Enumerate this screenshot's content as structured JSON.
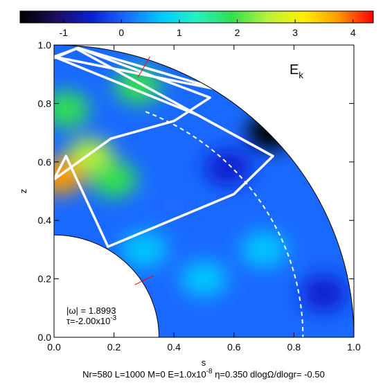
{
  "chart_data": {
    "type": "heatmap",
    "colorbar": {
      "ticks": [
        "-1",
        "0",
        "1",
        "2",
        "3",
        "4"
      ],
      "tick_values": [
        -1,
        0,
        1,
        2,
        3,
        4
      ],
      "range": [
        -1.75,
        4.35
      ],
      "colors": [
        "#000000",
        "#1b0e5a",
        "#0a1ecf",
        "#1a69ff",
        "#00c8ff",
        "#27f0c0",
        "#31e04f",
        "#b6f23a",
        "#fff000",
        "#ff9a00",
        "#ff0000"
      ]
    },
    "xlabel": "s",
    "ylabel": "z",
    "x_ticks": [
      "0.0",
      "0.2",
      "0.4",
      "0.6",
      "0.8",
      "1.0"
    ],
    "x_tick_values": [
      0.0,
      0.2,
      0.4,
      0.6,
      0.8,
      1.0
    ],
    "y_ticks": [
      "0.0",
      "0.2",
      "0.4",
      "0.6",
      "0.8",
      "1.0"
    ],
    "y_tick_values": [
      0.0,
      0.2,
      0.4,
      0.6,
      0.8,
      1.0
    ],
    "xlim": [
      0.0,
      1.0
    ],
    "ylim": [
      0.0,
      1.0
    ],
    "inner_radius": 0.35,
    "outer_radius": 1.0,
    "dashed_circle_radius": 0.83,
    "field_label": "E",
    "field_label_sub": "k",
    "annotation_omega": "|ω| = 1.8993",
    "annotation_tau_prefix": "τ=-2.00x10",
    "annotation_tau_exp": "-3",
    "footer_text": "Nr=580 L=1000 M=0 E=1.0x10",
    "footer_exp": "-8",
    "footer_rest": " η=0.350 dlogΩ/dlogr= -0.50",
    "rays": [
      {
        "name": "ray-orbit-top",
        "points": [
          [
            0.0,
            0.955
          ],
          [
            0.08,
            0.99
          ],
          [
            0.56,
            0.845
          ],
          [
            0.0,
            0.96
          ]
        ]
      },
      {
        "name": "ray-orbit-main",
        "points": [
          [
            0.0,
            0.54
          ],
          [
            0.04,
            0.62
          ],
          [
            0.18,
            0.31
          ],
          [
            0.6,
            0.49
          ],
          [
            0.73,
            0.62
          ],
          [
            0.48,
            0.76
          ],
          [
            0.0,
            0.96
          ],
          [
            0.08,
            0.99
          ],
          [
            0.52,
            0.82
          ],
          [
            0.4,
            0.74
          ],
          [
            0.19,
            0.68
          ],
          [
            0.0,
            0.54
          ]
        ]
      },
      {
        "name": "ray-orbit-mid",
        "points": [
          [
            0.07,
            0.99
          ],
          [
            0.73,
            0.62
          ]
        ]
      }
    ],
    "field_blobs": [
      {
        "s": 0.12,
        "z": 0.62,
        "v": 2.4
      },
      {
        "s": 0.04,
        "z": 0.78,
        "v": 2.1
      },
      {
        "s": 0.28,
        "z": 0.86,
        "v": 2.2
      },
      {
        "s": 0.4,
        "z": 0.45,
        "v": -0.2
      },
      {
        "s": 0.58,
        "z": 0.58,
        "v": -0.3
      },
      {
        "s": 0.7,
        "z": 0.3,
        "v": 0.9
      },
      {
        "s": 0.9,
        "z": 0.15,
        "v": -0.4
      },
      {
        "s": 0.72,
        "z": 0.7,
        "v": -1.6
      },
      {
        "s": 0.3,
        "z": 0.3,
        "v": 0.8
      },
      {
        "s": 0.5,
        "z": 0.2,
        "v": 0.5
      },
      {
        "s": 0.02,
        "z": 0.55,
        "v": 4.0
      },
      {
        "s": 0.2,
        "z": 0.54,
        "v": 1.9
      }
    ]
  }
}
